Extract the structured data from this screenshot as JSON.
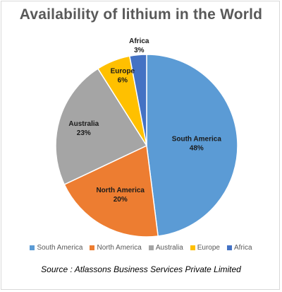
{
  "chart_data": {
    "type": "pie",
    "title": "Availability of lithium in the World",
    "categories": [
      "South America",
      "North America",
      "Australia",
      "Europe",
      "Africa"
    ],
    "values": [
      48,
      20,
      23,
      6,
      3
    ],
    "value_labels": [
      "48%",
      "20%",
      "23%",
      "6%",
      "3%"
    ],
    "colors": [
      "#5b9bd5",
      "#ed7d31",
      "#a5a5a5",
      "#ffc000",
      "#4472c4"
    ],
    "legend_position": "bottom",
    "start_angle_deg": 0,
    "direction": "clockwise"
  },
  "source_text": "Source : Atlassons Business Services Private Limited"
}
